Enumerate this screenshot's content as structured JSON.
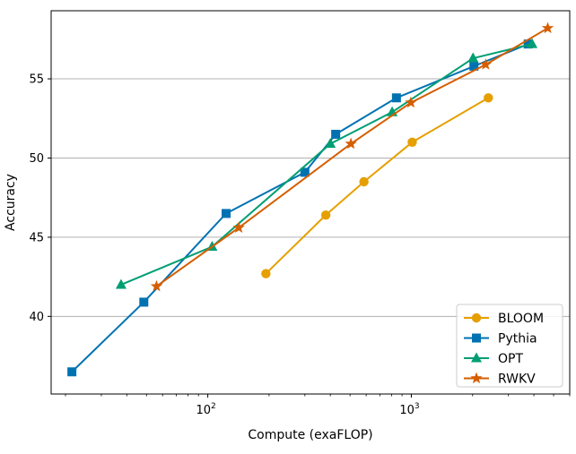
{
  "chart_data": {
    "type": "line",
    "xlabel": "Compute (exaFLOP)",
    "ylabel": "Accuracy",
    "xscale": "log",
    "xlim": [
      17,
      6000
    ],
    "ylim": [
      35.1,
      59.3
    ],
    "x_ticks": [
      {
        "value": 100,
        "base": "10",
        "exp": "2"
      },
      {
        "value": 1000,
        "base": "10",
        "exp": "3"
      }
    ],
    "y_ticks": [
      40,
      45,
      50,
      55
    ],
    "grid": "horizontal",
    "legend_position": "bottom-right",
    "series": [
      {
        "name": "BLOOM",
        "color": "#E69F00",
        "marker": "circle",
        "points": [
          [
            193,
            42.7
          ],
          [
            380,
            46.4
          ],
          [
            585,
            48.5
          ],
          [
            1010,
            51.0
          ],
          [
            2390,
            53.8
          ]
        ]
      },
      {
        "name": "Pythia",
        "color": "#0072B2",
        "marker": "square",
        "points": [
          [
            21.5,
            36.5
          ],
          [
            48.5,
            40.9
          ],
          [
            123,
            46.5
          ],
          [
            300,
            49.1
          ],
          [
            425,
            51.5
          ],
          [
            845,
            53.8
          ],
          [
            2030,
            55.8
          ],
          [
            3750,
            57.2
          ]
        ]
      },
      {
        "name": "OPT",
        "color": "#009E73",
        "marker": "triangle",
        "points": [
          [
            37.5,
            42.0
          ],
          [
            105,
            44.4
          ],
          [
            400,
            50.9
          ],
          [
            805,
            52.9
          ],
          [
            2010,
            56.3
          ],
          [
            3920,
            57.2
          ]
        ]
      },
      {
        "name": "RWKV",
        "color": "#D55E00",
        "marker": "star",
        "points": [
          [
            56,
            41.9
          ],
          [
            142,
            45.6
          ],
          [
            505,
            50.9
          ],
          [
            995,
            53.5
          ],
          [
            2320,
            55.9
          ],
          [
            4680,
            58.2
          ]
        ]
      }
    ]
  }
}
